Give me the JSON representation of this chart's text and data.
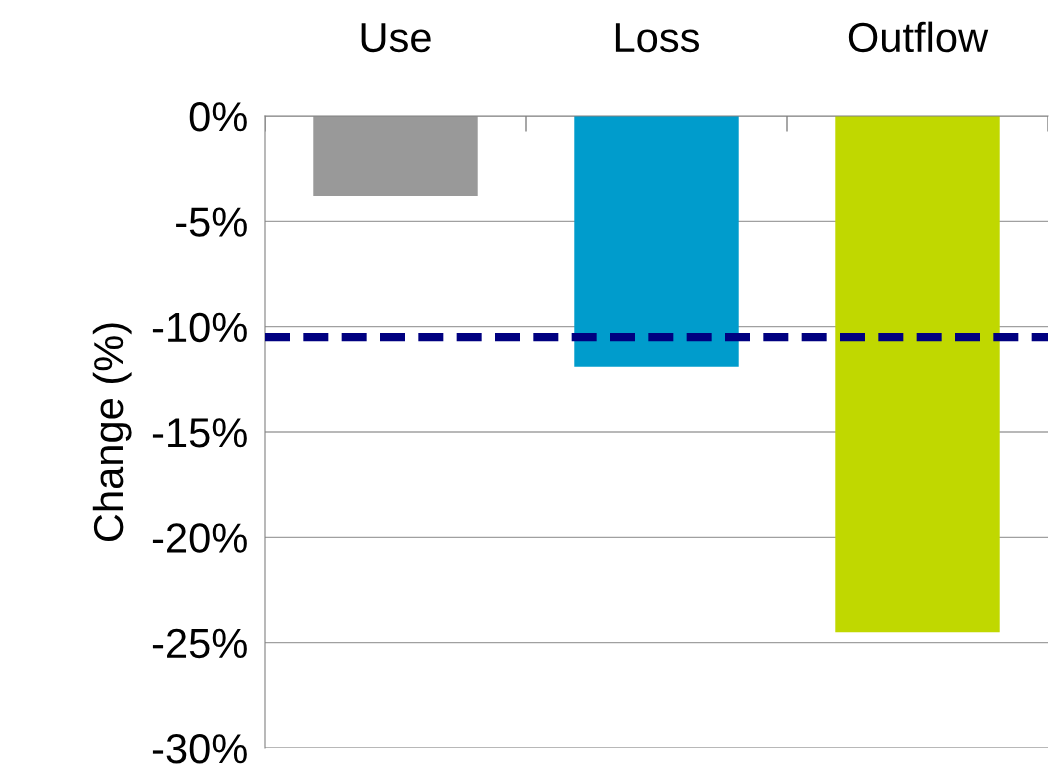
{
  "chart_data": {
    "type": "bar",
    "ylabel": "Change (%)",
    "categories": [
      "Use",
      "Loss",
      "Outflow"
    ],
    "values": [
      -3.8,
      -11.9,
      -24.5
    ],
    "colors": [
      "#999999",
      "#009ccc",
      "#c0d800"
    ],
    "ylim": [
      -30,
      0
    ],
    "yticks": [
      {
        "value": 0,
        "label": "0%"
      },
      {
        "value": -5,
        "label": "-5%"
      },
      {
        "value": -10,
        "label": "-10%"
      },
      {
        "value": -15,
        "label": "-15%"
      },
      {
        "value": -20,
        "label": "-20%"
      },
      {
        "value": -25,
        "label": "-25%"
      },
      {
        "value": -30,
        "label": "-30%"
      }
    ],
    "grid": "y",
    "ref_lines": [
      {
        "axis": "y",
        "value": -10.5,
        "color": "#000080",
        "line_style": "dashed"
      }
    ]
  }
}
